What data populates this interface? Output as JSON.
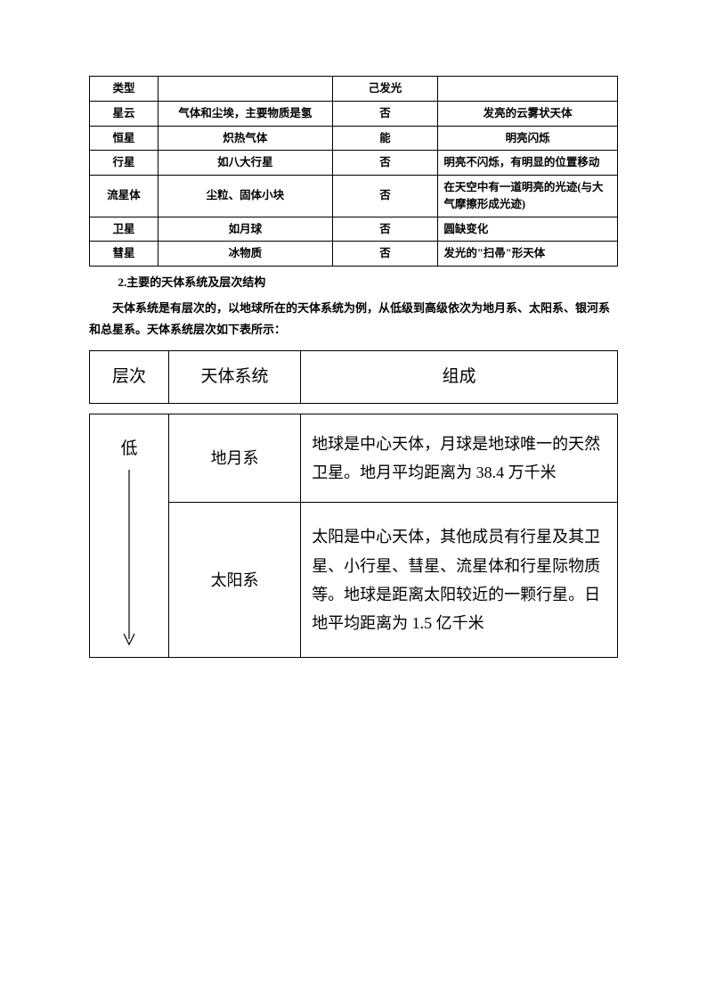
{
  "table1": {
    "header": {
      "c1": "类型",
      "c2": "",
      "c3": "己发光",
      "c4": ""
    },
    "rows": [
      {
        "c1": "星云",
        "c2": "气体和尘埃，主要物质是氢",
        "c3": "否",
        "c4": "发亮的云雾状天体",
        "c4align": "center"
      },
      {
        "c1": "恒星",
        "c2": "炽热气体",
        "c3": "能",
        "c4": "明亮闪烁",
        "c4align": "center"
      },
      {
        "c1": "行星",
        "c2": "如八大行星",
        "c3": "否",
        "c4": "明亮不闪烁，有明显的位置移动",
        "c4align": "left"
      },
      {
        "c1": "流星体",
        "c2": "尘粒、固体小块",
        "c3": "否",
        "c4": "在天空中有一道明亮的光迹(与大气摩擦形成光迹)",
        "c4align": "left"
      },
      {
        "c1": "卫星",
        "c2": "如月球",
        "c3": "否",
        "c4": "圆缺变化",
        "c4align": "left"
      },
      {
        "c1": "彗星",
        "c2": "冰物质",
        "c3": "否",
        "c4": "发光的\"扫帚\"形天体",
        "c4align": "left"
      }
    ]
  },
  "heading": "2.主要的天体系统及层次结构",
  "paragraph": "天体系统是有层次的，以地球所在的天体系统为例，从低级到高级依次为地月系、太阳系、银河系和总星系。天体系统层次如下表所示：",
  "table2": {
    "header": {
      "c1": "层次",
      "c2": "天体系统",
      "c3": "组成"
    },
    "arrow_label": "低",
    "rows": [
      {
        "c2": "地月系",
        "c3": "地球是中心天体，月球是地球唯一的天然卫星。地月平均距离为 38.4 万千米"
      },
      {
        "c2": "太阳系",
        "c3": "太阳是中心天体，其他成员有行星及其卫星、小行星、彗星、流星体和行星际物质等。地球是距离太阳较近的一颗行星。日地平均距离为 1.5 亿千米"
      }
    ]
  }
}
